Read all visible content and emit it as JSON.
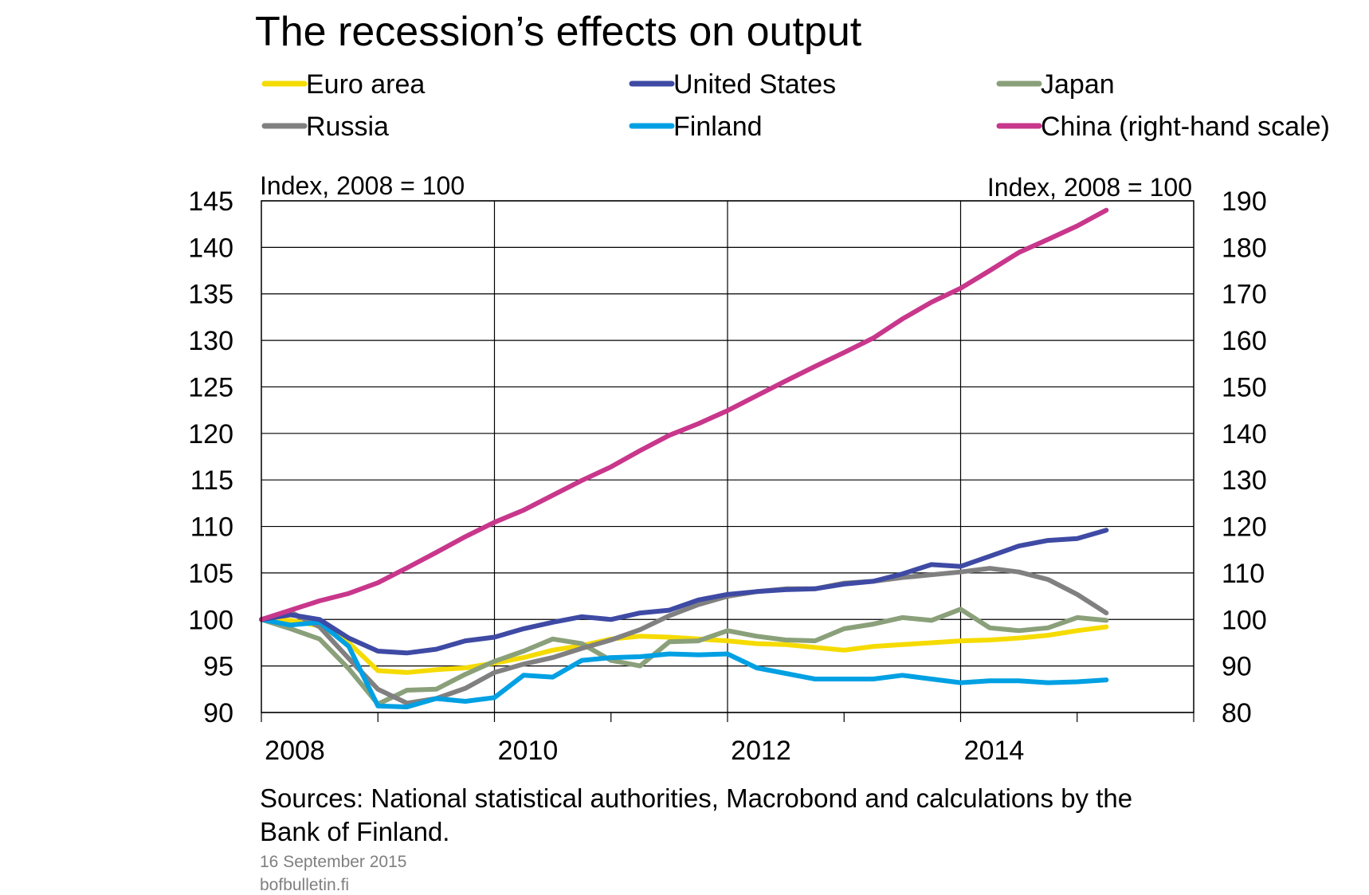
{
  "chart_data": {
    "type": "line",
    "title": "The recession’s effects on output",
    "y_left_label": "Index, 2008 = 100",
    "y_right_label": "Index, 2008 = 100",
    "y_left_lim": [
      90,
      145
    ],
    "y_right_lim": [
      80,
      190
    ],
    "y_left_ticks": [
      90,
      95,
      100,
      105,
      110,
      115,
      120,
      125,
      130,
      135,
      140,
      145
    ],
    "y_right_ticks": [
      80,
      90,
      100,
      110,
      120,
      130,
      140,
      150,
      160,
      170,
      180,
      190
    ],
    "x_lim": [
      2008,
      2016
    ],
    "x_tick_labels": [
      "2008",
      "2010",
      "2012",
      "2014"
    ],
    "grid": true,
    "legend_position": "top",
    "series": [
      {
        "name": "Euro area",
        "color": "#f5db00",
        "axis": "left",
        "x": [
          2008.0,
          2008.25,
          2008.5,
          2008.75,
          2009.0,
          2009.25,
          2009.5,
          2009.75,
          2010.0,
          2010.25,
          2010.5,
          2010.75,
          2011.0,
          2011.25,
          2011.5,
          2011.75,
          2012.0,
          2012.25,
          2012.5,
          2012.75,
          2013.0,
          2013.25,
          2013.5,
          2013.75,
          2014.0,
          2014.25,
          2014.5,
          2014.75,
          2015.0,
          2015.25
        ],
        "y": [
          100,
          99.9,
          99.3,
          97.5,
          94.5,
          94.3,
          94.6,
          94.8,
          95.3,
          95.9,
          96.7,
          97.2,
          97.9,
          98.2,
          98.1,
          97.9,
          97.7,
          97.4,
          97.3,
          97.0,
          96.7,
          97.1,
          97.3,
          97.5,
          97.7,
          97.8,
          98.0,
          98.3,
          98.8,
          99.2
        ]
      },
      {
        "name": "United States",
        "color": "#3e4aa4",
        "axis": "left",
        "x": [
          2008.0,
          2008.25,
          2008.5,
          2008.75,
          2009.0,
          2009.25,
          2009.5,
          2009.75,
          2010.0,
          2010.25,
          2010.5,
          2010.75,
          2011.0,
          2011.25,
          2011.5,
          2011.75,
          2012.0,
          2012.25,
          2012.5,
          2012.75,
          2013.0,
          2013.25,
          2013.5,
          2013.75,
          2014.0,
          2014.25,
          2014.5,
          2014.75,
          2015.0,
          2015.25
        ],
        "y": [
          100,
          100.5,
          100.0,
          98.0,
          96.6,
          96.4,
          96.8,
          97.7,
          98.1,
          99.0,
          99.7,
          100.3,
          100.0,
          100.7,
          101.0,
          102.1,
          102.7,
          103.0,
          103.2,
          103.3,
          103.8,
          104.1,
          104.9,
          105.9,
          105.7,
          106.8,
          107.9,
          108.5,
          108.7,
          109.6
        ]
      },
      {
        "name": "Japan",
        "color": "#8aa07a",
        "axis": "left",
        "x": [
          2008.0,
          2008.25,
          2008.5,
          2008.75,
          2009.0,
          2009.25,
          2009.5,
          2009.75,
          2010.0,
          2010.25,
          2010.5,
          2010.75,
          2011.0,
          2011.25,
          2011.5,
          2011.75,
          2012.0,
          2012.25,
          2012.5,
          2012.75,
          2013.0,
          2013.25,
          2013.5,
          2013.75,
          2014.0,
          2014.25,
          2014.5,
          2014.75,
          2015.0,
          2015.25
        ],
        "y": [
          100,
          99.0,
          97.9,
          94.7,
          90.9,
          92.4,
          92.5,
          94.1,
          95.5,
          96.6,
          97.9,
          97.4,
          95.6,
          95.0,
          97.6,
          97.7,
          98.8,
          98.2,
          97.8,
          97.7,
          99.0,
          99.5,
          100.2,
          99.9,
          101.1,
          99.1,
          98.8,
          99.1,
          100.2,
          99.9
        ]
      },
      {
        "name": "Russia",
        "color": "#808080",
        "axis": "left",
        "x": [
          2008.0,
          2008.25,
          2008.5,
          2008.75,
          2009.0,
          2009.25,
          2009.5,
          2009.75,
          2010.0,
          2010.25,
          2010.5,
          2010.75,
          2011.0,
          2011.25,
          2011.5,
          2011.75,
          2012.0,
          2012.25,
          2012.5,
          2012.75,
          2013.0,
          2013.25,
          2013.5,
          2013.75,
          2014.0,
          2014.25,
          2014.5,
          2014.75,
          2015.0,
          2015.25
        ],
        "y": [
          100,
          100.8,
          99.2,
          95.8,
          92.5,
          91.0,
          91.5,
          92.6,
          94.3,
          95.2,
          95.9,
          96.9,
          97.8,
          98.9,
          100.4,
          101.6,
          102.5,
          103.0,
          103.3,
          103.3,
          103.9,
          104.1,
          104.5,
          104.8,
          105.1,
          105.5,
          105.1,
          104.3,
          102.7,
          100.7
        ]
      },
      {
        "name": "Finland",
        "color": "#00a0e3",
        "axis": "left",
        "x": [
          2008.0,
          2008.25,
          2008.5,
          2008.75,
          2009.0,
          2009.25,
          2009.5,
          2009.75,
          2010.0,
          2010.25,
          2010.5,
          2010.75,
          2011.0,
          2011.25,
          2011.5,
          2011.75,
          2012.0,
          2012.25,
          2012.5,
          2012.75,
          2013.0,
          2013.25,
          2013.5,
          2013.75,
          2014.0,
          2014.25,
          2014.5,
          2014.75,
          2015.0,
          2015.25
        ],
        "y": [
          100,
          99.4,
          99.7,
          97.1,
          90.7,
          90.6,
          91.5,
          91.2,
          91.6,
          94.0,
          93.8,
          95.6,
          95.9,
          96.0,
          96.3,
          96.2,
          96.3,
          94.8,
          94.2,
          93.6,
          93.6,
          93.6,
          94.0,
          93.6,
          93.2,
          93.4,
          93.4,
          93.2,
          93.3,
          93.5
        ]
      },
      {
        "name": "China (right-hand scale)",
        "color": "#c8378c",
        "axis": "right",
        "x": [
          2008.0,
          2008.25,
          2008.5,
          2008.75,
          2009.0,
          2009.25,
          2009.5,
          2009.75,
          2010.0,
          2010.25,
          2010.5,
          2010.75,
          2011.0,
          2011.25,
          2011.5,
          2011.75,
          2012.0,
          2012.25,
          2012.5,
          2012.75,
          2013.0,
          2013.25,
          2013.5,
          2013.75,
          2014.0,
          2014.25,
          2014.5,
          2014.75,
          2015.0,
          2015.25
        ],
        "y": [
          100,
          102.0,
          104.0,
          105.6,
          107.9,
          111.1,
          114.4,
          117.8,
          120.9,
          123.5,
          126.7,
          129.9,
          132.8,
          136.3,
          139.6,
          142.1,
          144.9,
          148.1,
          151.3,
          154.4,
          157.4,
          160.5,
          164.6,
          168.2,
          171.2,
          175.0,
          178.9,
          181.7,
          184.6,
          188.0
        ]
      }
    ]
  },
  "footer": {
    "source_line1": "Sources: National statistical authorities, Macrobond and calculations by the",
    "source_line2": "Bank of Finland.",
    "date": "16 September  2015",
    "site": "bofbulletin.fi"
  }
}
